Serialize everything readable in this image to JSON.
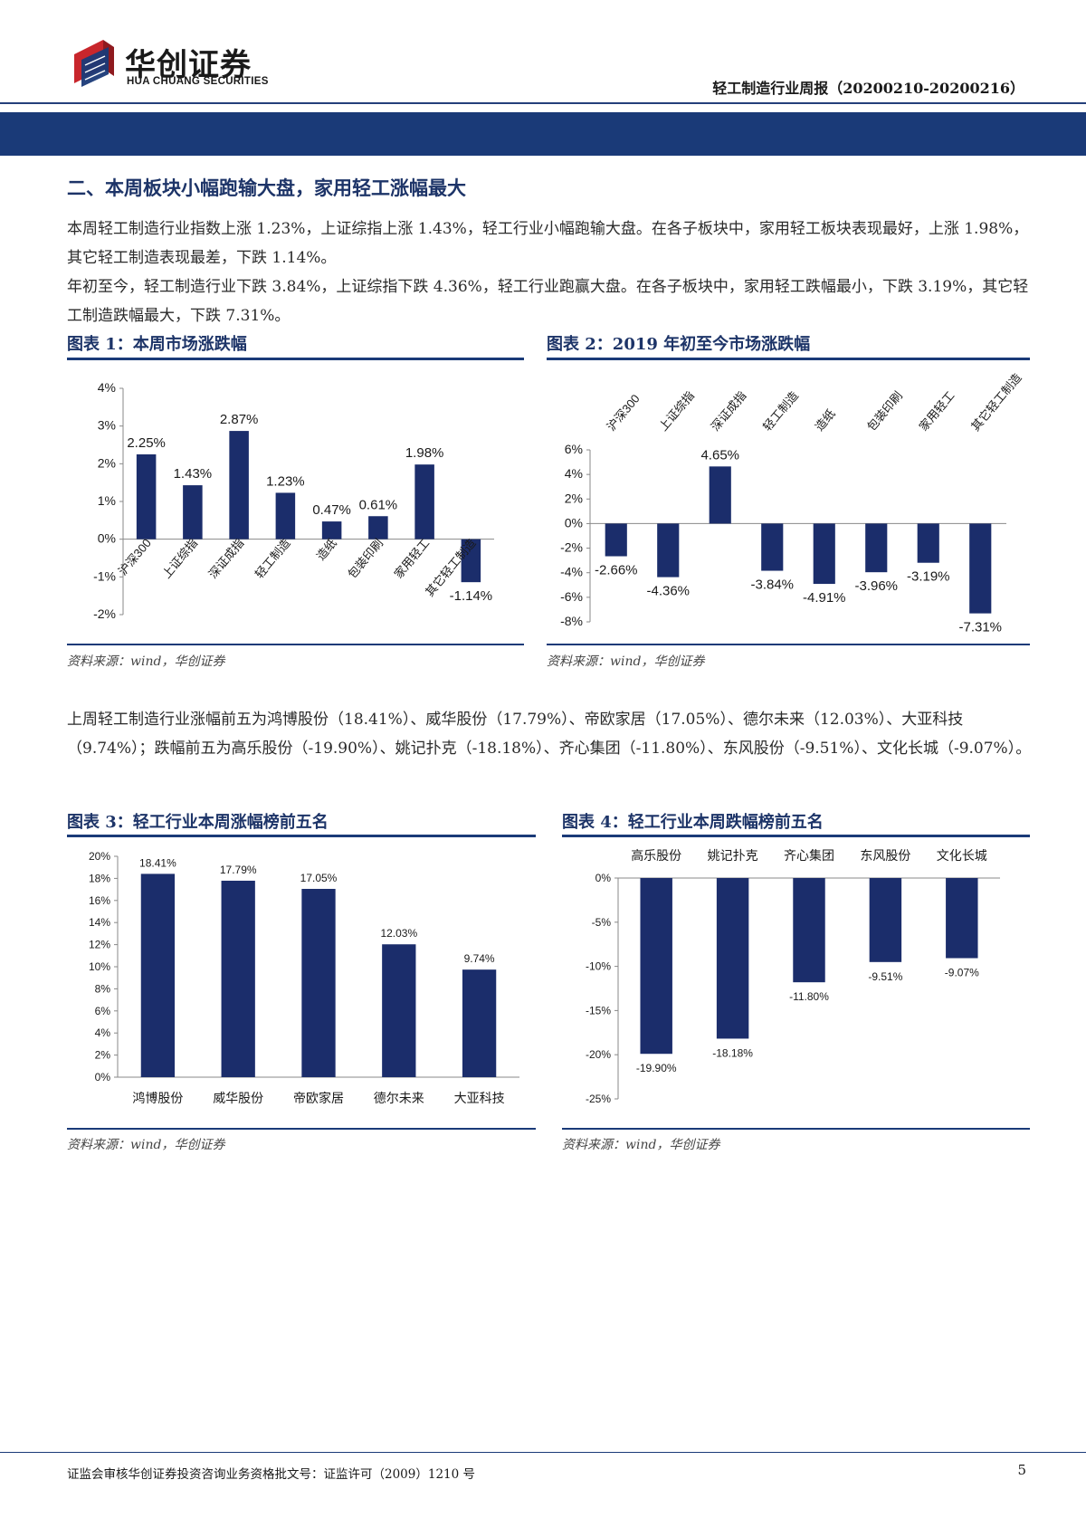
{
  "header": {
    "logo_cn": "华创证券",
    "logo_en": "HUA CHUANG SECURITIES",
    "report_title": "轻工制造行业周报（20200210-20200216）"
  },
  "section": {
    "title": "二、本周板块小幅跑输大盘，家用轻工涨幅最大",
    "para1": "本周轻工制造行业指数上涨 1.23%，上证综指上涨 1.43%，轻工行业小幅跑输大盘。在各子板块中，家用轻工板块表现最好，上涨 1.98%，其它轻工制造表现最差，下跌 1.14%。",
    "para2": "年初至今，轻工制造行业下跌 3.84%，上证综指下跌 4.36%，轻工行业跑赢大盘。在各子板块中，家用轻工跌幅最小，下跌 3.19%，其它轻工制造跌幅最大，下跌 7.31%。",
    "para3": "上周轻工制造行业涨幅前五为鸿博股份（18.41%）、威华股份（17.79%）、帝欧家居（17.05%）、德尔未来（12.03%）、大亚科技（9.74%）；跌幅前五为高乐股份（-19.90%）、姚记扑克（-18.18%）、齐心集团（-11.80%）、东风股份（-9.51%）、文化长城（-9.07%）。"
  },
  "figures": {
    "fig1_title": "图表 1：本周市场涨跌幅",
    "fig2_title": "图表 2：2019 年初至今市场涨跌幅",
    "fig3_title": "图表 3：轻工行业本周涨幅榜前五名",
    "fig4_title": "图表 4：轻工行业本周跌幅榜前五名",
    "source": "资料来源：wind，华创证券"
  },
  "colors": {
    "bar": "#1b2d6b",
    "accent": "#1a3a78"
  },
  "chart_data": [
    {
      "type": "bar",
      "title": "图表 1：本周市场涨跌幅",
      "categories": [
        "沪深300",
        "上证综指",
        "深证成指",
        "轻工制造",
        "造纸",
        "包装印刷",
        "家用轻工",
        "其它轻工制造"
      ],
      "values": [
        2.25,
        1.43,
        2.87,
        1.23,
        0.47,
        0.61,
        1.98,
        -1.14
      ],
      "value_labels": [
        "2.25%",
        "1.43%",
        "2.87%",
        "1.23%",
        "0.47%",
        "0.61%",
        "1.98%",
        "-1.14%"
      ],
      "ylim": [
        -2,
        4
      ],
      "ticks": [
        4,
        3,
        2,
        1,
        0,
        -1,
        -2
      ],
      "tick_labels": [
        "4%",
        "3%",
        "2%",
        "1%",
        "0%",
        "-1%",
        "-2%"
      ],
      "grid": false
    },
    {
      "type": "bar",
      "title": "图表 2：2019 年初至今市场涨跌幅",
      "categories": [
        "沪深300",
        "上证综指",
        "深证成指",
        "轻工制造",
        "造纸",
        "包装印刷",
        "家用轻工",
        "其它轻工制造"
      ],
      "values": [
        -2.66,
        -4.36,
        4.65,
        -3.84,
        -4.91,
        -3.96,
        -3.19,
        -7.31
      ],
      "value_labels": [
        "-2.66%",
        "-4.36%",
        "4.65%",
        "-3.84%",
        "-4.91%",
        "-3.96%",
        "-3.19%",
        "-7.31%"
      ],
      "ylim": [
        -8,
        6
      ],
      "ticks": [
        6,
        4,
        2,
        0,
        -2,
        -4,
        -6,
        -8
      ],
      "tick_labels": [
        "6%",
        "4%",
        "2%",
        "0%",
        "-2%",
        "-4%",
        "-6%",
        "-8%"
      ],
      "grid": false
    },
    {
      "type": "bar",
      "title": "图表 3：轻工行业本周涨幅榜前五名",
      "categories": [
        "鸿博股份",
        "威华股份",
        "帝欧家居",
        "德尔未来",
        "大亚科技"
      ],
      "values": [
        18.41,
        17.79,
        17.05,
        12.03,
        9.74
      ],
      "value_labels": [
        "18.41%",
        "17.79%",
        "17.05%",
        "12.03%",
        "9.74%"
      ],
      "ylim": [
        0,
        20
      ],
      "ticks": [
        20,
        18,
        16,
        14,
        12,
        10,
        8,
        6,
        4,
        2,
        0
      ],
      "tick_labels": [
        "20%",
        "18%",
        "16%",
        "14%",
        "12%",
        "10%",
        "8%",
        "6%",
        "4%",
        "2%",
        "0%"
      ],
      "grid": false
    },
    {
      "type": "bar",
      "title": "图表 4：轻工行业本周跌幅榜前五名",
      "categories": [
        "高乐股份",
        "姚记扑克",
        "齐心集团",
        "东风股份",
        "文化长城"
      ],
      "values": [
        -19.9,
        -18.18,
        -11.8,
        -9.51,
        -9.07
      ],
      "value_labels": [
        "-19.90%",
        "-18.18%",
        "-11.80%",
        "-9.51%",
        "-9.07%"
      ],
      "ylim": [
        -25,
        0
      ],
      "ticks": [
        0,
        -5,
        -10,
        -15,
        -20,
        -25
      ],
      "tick_labels": [
        "0%",
        "-5%",
        "-10%",
        "-15%",
        "-20%",
        "-25%"
      ],
      "grid": false
    }
  ],
  "footer": {
    "text": "证监会审核华创证券投资咨询业务资格批文号：证监许可（2009）1210 号",
    "page": "5"
  }
}
